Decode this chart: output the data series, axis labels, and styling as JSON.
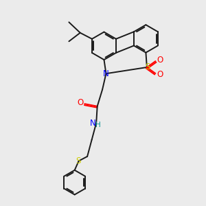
{
  "bg_color": "#ebebeb",
  "bond_color": "#1a1a1a",
  "N_color": "#0000ff",
  "O_color": "#ff0000",
  "S_color": "#cccc00",
  "NH_color": "#009090",
  "lw": 1.4,
  "lw_thick": 1.8,
  "ring_r": 0.68,
  "figsize": [
    3.0,
    3.0
  ],
  "dpi": 100
}
